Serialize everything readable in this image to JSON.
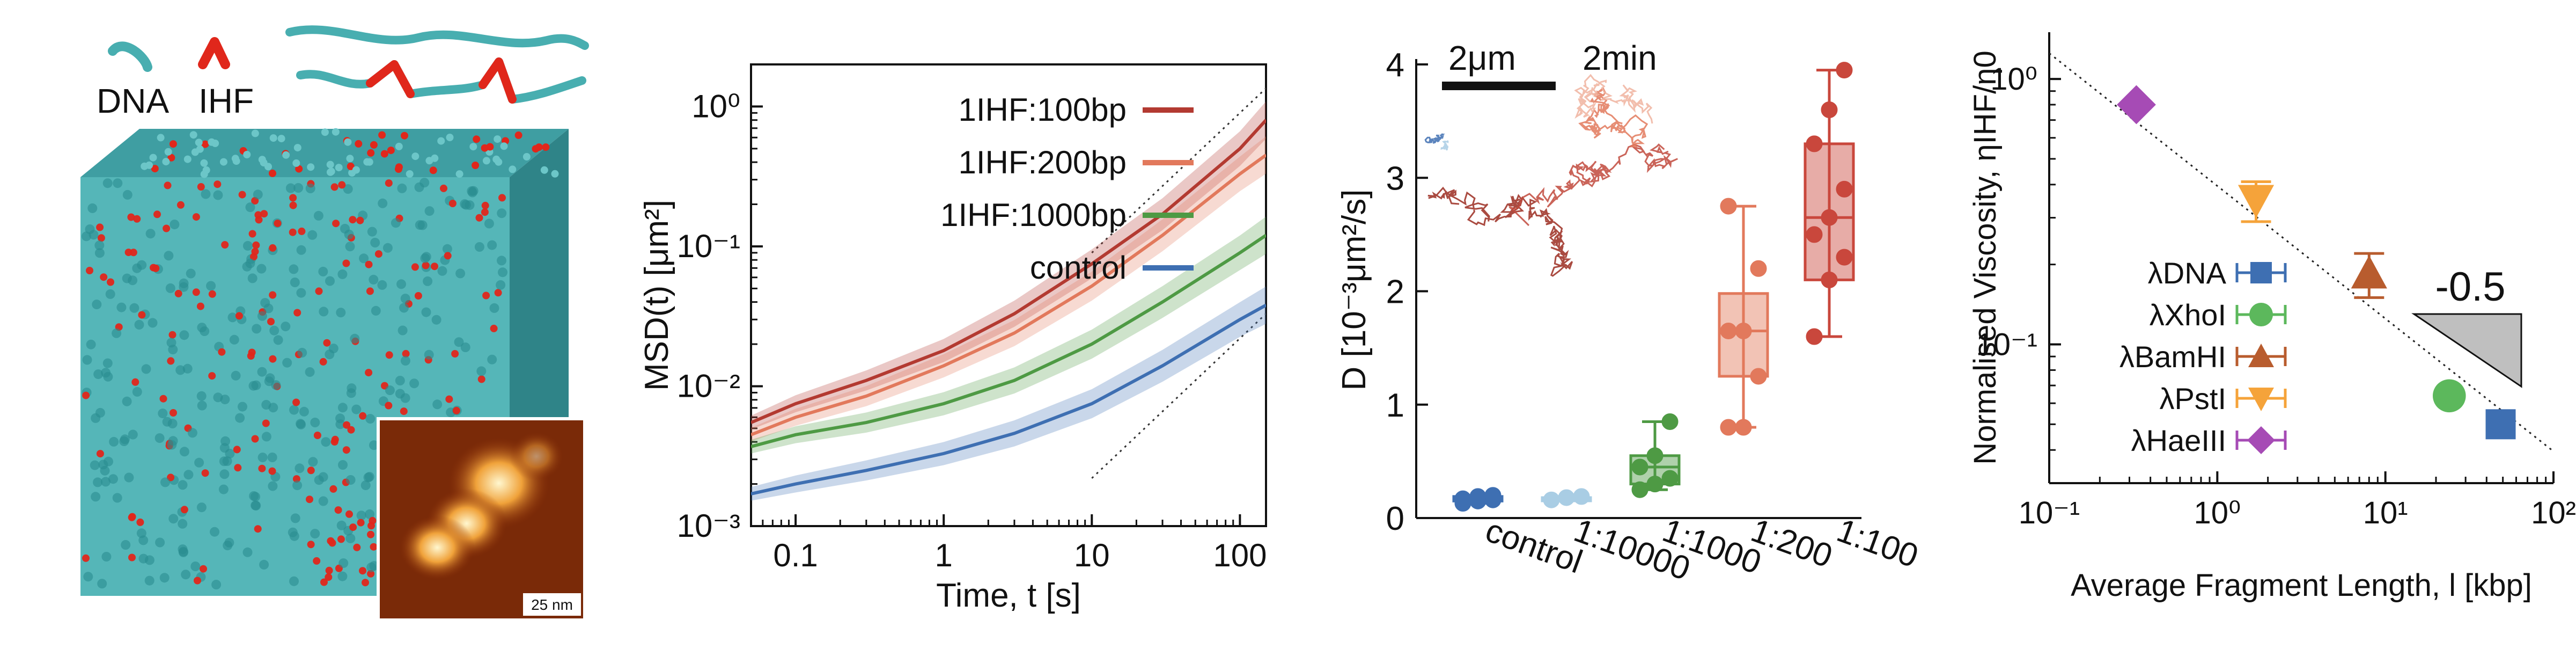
{
  "panel_a": {
    "legend": {
      "dna_label": "DNA",
      "ihf_label": "IHF"
    },
    "colors": {
      "dna": "#48aeb0",
      "ihf": "#e0271b"
    },
    "inset_scale_label": "25 nm"
  },
  "chart_data": [
    {
      "type": "line",
      "xlabel": "Time, t [s]",
      "ylabel": "MSD(t) [μm²]",
      "xscale": "log",
      "yscale": "log",
      "xlim": [
        0.05,
        150
      ],
      "ylim": [
        0.001,
        2
      ],
      "xticks": [
        0.1,
        1,
        10,
        100
      ],
      "xtick_labels": [
        "0.1",
        "1",
        "10",
        "100"
      ],
      "yticks": [
        0.001,
        0.01,
        0.1,
        1
      ],
      "ytick_labels": [
        "10⁻³",
        "10⁻²",
        "10⁻¹",
        "10⁰"
      ],
      "x": [
        0.05,
        0.1,
        0.3,
        1,
        3,
        10,
        30,
        100,
        150
      ],
      "series": [
        {
          "name": "1IHF:100bp",
          "color": "#b33a31",
          "values": [
            0.0055,
            0.0075,
            0.011,
            0.018,
            0.033,
            0.075,
            0.17,
            0.5,
            0.8
          ]
        },
        {
          "name": "1IHF:200bp",
          "color": "#e2795c",
          "values": [
            0.0045,
            0.006,
            0.0085,
            0.014,
            0.024,
            0.052,
            0.12,
            0.33,
            0.45
          ]
        },
        {
          "name": "1IHF:1000bp",
          "color": "#4e9a44",
          "values": [
            0.0037,
            0.0045,
            0.0055,
            0.0075,
            0.011,
            0.02,
            0.04,
            0.09,
            0.12
          ]
        },
        {
          "name": "control",
          "color": "#3e6fb2",
          "values": [
            0.0017,
            0.002,
            0.0025,
            0.0033,
            0.0046,
            0.0075,
            0.014,
            0.03,
            0.038
          ]
        }
      ],
      "legend_position": "top-left",
      "grid": false
    },
    {
      "type": "box",
      "ylabel": "D [10⁻³μm²/s]",
      "ylim": [
        0,
        4
      ],
      "yticks": [
        0,
        1,
        2,
        3,
        4
      ],
      "categories": [
        "control",
        "1:10000",
        "1:1000",
        "1:200",
        "1:100"
      ],
      "colors": [
        "#3e6fb2",
        "#a9cde4",
        "#4e9a44",
        "#e2795c",
        "#c9473c"
      ],
      "boxes": [
        {
          "min": 0.13,
          "q1": 0.15,
          "median": 0.17,
          "q3": 0.19,
          "max": 0.2
        },
        {
          "min": 0.16,
          "q1": 0.17,
          "median": 0.18,
          "q3": 0.18,
          "max": 0.19
        },
        {
          "min": 0.25,
          "q1": 0.3,
          "median": 0.45,
          "q3": 0.55,
          "max": 0.85
        },
        {
          "min": 0.8,
          "q1": 1.25,
          "median": 1.65,
          "q3": 1.98,
          "max": 2.75
        },
        {
          "min": 1.6,
          "q1": 2.1,
          "median": 2.65,
          "q3": 3.3,
          "max": 3.95
        }
      ],
      "points": [
        [
          0.13,
          0.15,
          0.16,
          0.17,
          0.19,
          0.2
        ],
        [
          0.16,
          0.18,
          0.19
        ],
        [
          0.25,
          0.3,
          0.35,
          0.45,
          0.55,
          0.85
        ],
        [
          0.8,
          0.8,
          1.25,
          1.65,
          1.65,
          2.2,
          2.75
        ],
        [
          1.6,
          2.1,
          2.3,
          2.5,
          2.65,
          2.9,
          3.3,
          3.6,
          3.95
        ]
      ],
      "inset": {
        "scale_label": "2μm",
        "time_label": "2min"
      }
    },
    {
      "type": "scatter",
      "xlabel": "Average Fragment Length, l [kbp]",
      "ylabel": "Normalised Viscosity, ηIHF/η0",
      "xscale": "log",
      "yscale": "log",
      "xlim": [
        0.1,
        100
      ],
      "ylim": [
        0.03,
        1.5
      ],
      "xticks": [
        0.1,
        1,
        10,
        100
      ],
      "xtick_labels": [
        "10⁻¹",
        "10⁰",
        "10¹",
        "10²"
      ],
      "yticks": [
        0.1,
        1
      ],
      "ytick_labels": [
        "10⁻¹",
        "10⁰"
      ],
      "series": [
        {
          "name": "λDNA",
          "color": "#3e6fb2",
          "marker": "square",
          "x": 48.5,
          "y": 0.05,
          "err": 0.0
        },
        {
          "name": "λXhoI",
          "color": "#5cb85c",
          "marker": "circle",
          "x": 24,
          "y": 0.064,
          "err": 0.0
        },
        {
          "name": "λBamHI",
          "color": "#b85c2e",
          "marker": "triangle-up",
          "x": 8,
          "y": 0.185,
          "err": 0.035
        },
        {
          "name": "λPstI",
          "color": "#f5a33a",
          "marker": "triangle-down",
          "x": 1.7,
          "y": 0.35,
          "err": 0.06
        },
        {
          "name": "λHaeIII",
          "color": "#a64bb5",
          "marker": "diamond",
          "x": 0.33,
          "y": 0.8,
          "err": 0.0
        }
      ],
      "slope_label": "-0.5",
      "legend_position": "center-left",
      "grid": false
    }
  ]
}
